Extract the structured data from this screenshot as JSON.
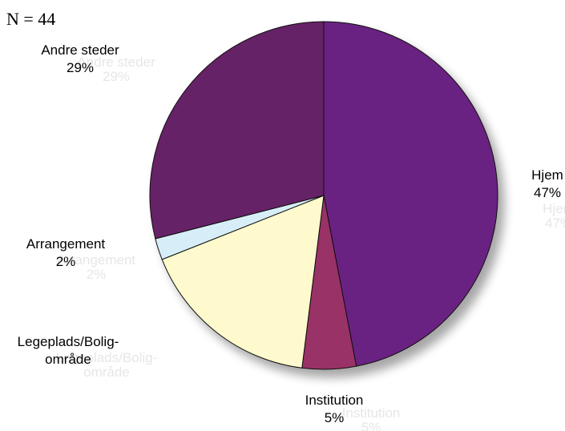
{
  "chart_data": {
    "type": "pie",
    "note": "N = 44",
    "slices": [
      {
        "label": "Hjem",
        "value_label": "47%",
        "value": 47,
        "color": "#6B2382"
      },
      {
        "label": "Institution",
        "value_label": "5%",
        "value": 5,
        "color": "#993366"
      },
      {
        "label": "Legeplads/Bolig-område",
        "label_lines": [
          "Legeplads/Bolig-",
          "område"
        ],
        "value_label": "",
        "value": 17,
        "color": "#FFFACD"
      },
      {
        "label": "Arrangement",
        "value_label": "2%",
        "value": 2,
        "color": "#D7EEF8"
      },
      {
        "label": "Andre steder",
        "value_label": "29%",
        "value": 29,
        "color": "#662066"
      }
    ],
    "start_angle": "12 o'clock",
    "direction": "clockwise",
    "legend": "none"
  }
}
